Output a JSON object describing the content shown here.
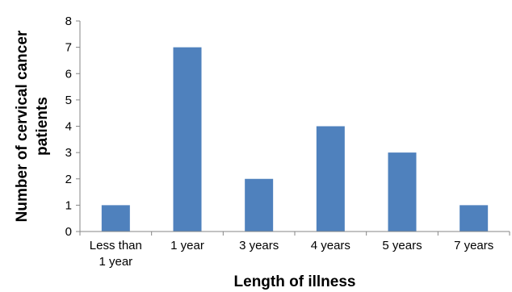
{
  "chart_data": {
    "type": "bar",
    "categories": [
      [
        "Less than",
        "1 year"
      ],
      [
        "1 year"
      ],
      [
        "3 years"
      ],
      [
        "4 years"
      ],
      [
        "5 years"
      ],
      [
        "7 years"
      ]
    ],
    "values": [
      1,
      7,
      2,
      4,
      3,
      1
    ],
    "title": "",
    "xlabel": "Length of illness",
    "ylabel": [
      "Number of cervical cancer",
      "patients"
    ],
    "ylim": [
      0,
      8
    ],
    "yticks": [
      0,
      1,
      2,
      3,
      4,
      5,
      6,
      7,
      8
    ],
    "grid": false,
    "legend": "none",
    "bar_color": "#4F81BD"
  }
}
